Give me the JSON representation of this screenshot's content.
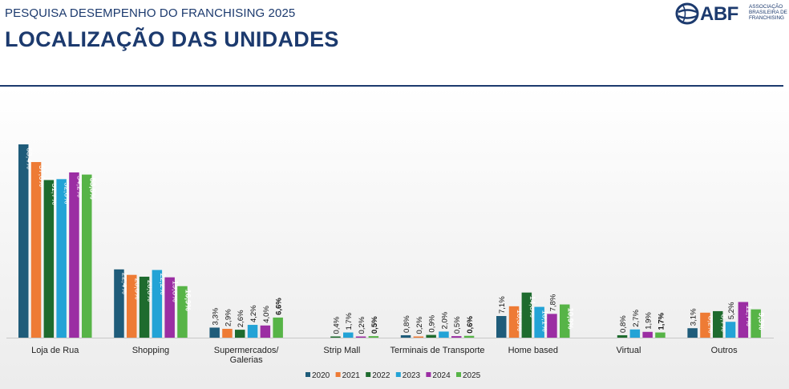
{
  "header": {
    "kicker": "PESQUISA DESEMPENHO DO FRANCHISING 2025",
    "title": "LOCALIZAÇÃO DAS UNIDADES"
  },
  "logo": {
    "word": "ABF",
    "lines": [
      "ASSOCIAÇÃO",
      "BRASILEIRA DE",
      "FRANCHISING"
    ],
    "icon": "abf-globe-icon"
  },
  "colors": {
    "brand": "#1c3a6e",
    "series": [
      "#1f5c7a",
      "#ee7b35",
      "#1e6b2e",
      "#23a3d6",
      "#9b2ea3",
      "#57b447"
    ]
  },
  "chart_data": {
    "type": "bar",
    "categories": [
      "Loja de Rua",
      "Shopping",
      "Supermercados/ Galerias",
      "Strip Mall",
      "Terminais de Transporte",
      "Home based",
      "Virtual",
      "Outros"
    ],
    "category_lines": [
      [
        "Loja de Rua"
      ],
      [
        "Shopping"
      ],
      [
        "Supermercados/",
        "Galerias"
      ],
      [
        "Strip Mall"
      ],
      [
        "Terminais de Transporte"
      ],
      [
        "Home based"
      ],
      [
        "Virtual"
      ],
      [
        "Outros"
      ]
    ],
    "series": [
      {
        "name": "2020",
        "values": [
          63.4,
          22.4,
          3.3,
          null,
          0.8,
          7.1,
          null,
          3.1
        ],
        "labels": [
          "63,4%",
          "22,4%",
          "3,3%",
          "",
          "0,8%",
          "7,1%",
          "",
          "3,1%"
        ]
      },
      {
        "name": "2021",
        "values": [
          57.6,
          20.6,
          2.9,
          null,
          0.2,
          10.3,
          null,
          8.2
        ],
        "labels": [
          "57,6%",
          "20,6%",
          "2,9%",
          "",
          "0,2%",
          "10,3%",
          "",
          "8,2%"
        ]
      },
      {
        "name": "2022",
        "values": [
          51.7,
          20.0,
          2.6,
          0.4,
          0.9,
          14.8,
          0.8,
          8.7
        ],
        "labels": [
          "51,7%",
          "20,0%",
          "2,6%",
          "0,4%",
          "0,9%",
          "14,8%",
          "0,8%",
          "8,7%"
        ]
      },
      {
        "name": "2023",
        "values": [
          52.0,
          22.2,
          4.2,
          1.7,
          2.0,
          10.1,
          2.7,
          5.2
        ],
        "labels": [
          "52,0%",
          "22,2%",
          "4,2%",
          "1,7%",
          "2,0%",
          "10,1%",
          "2,7%",
          "5,2%"
        ]
      },
      {
        "name": "2024",
        "values": [
          54.2,
          19.8,
          4.0,
          0.2,
          0.5,
          7.8,
          1.9,
          11.7
        ],
        "labels": [
          "54,2%",
          "19,8%",
          "4,0%",
          "0,2%",
          "0,5%",
          "7,8%",
          "1,9%",
          "11,7%"
        ]
      },
      {
        "name": "2025",
        "values": [
          53.5,
          16.9,
          6.6,
          0.5,
          0.6,
          10.9,
          1.7,
          9.3
        ],
        "labels": [
          "53,5%",
          "16,9%",
          "6,6%",
          "0,5%",
          "0,6%",
          "10,9%",
          "1,7%",
          "9,3%"
        ]
      }
    ],
    "ylim": [
      0,
      70
    ],
    "grid": false,
    "legend_position": "bottom"
  }
}
